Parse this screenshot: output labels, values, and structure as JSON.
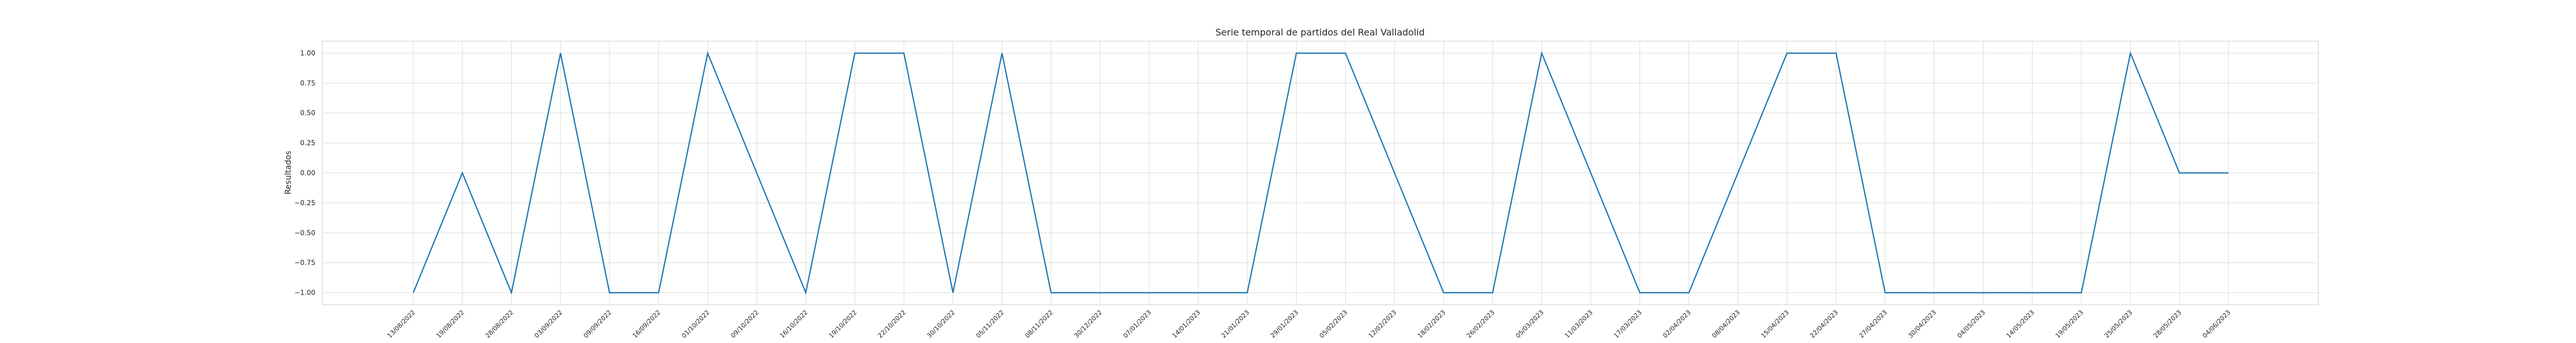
{
  "chart_data": {
    "type": "line",
    "title": "Serie temporal de partidos del Real Valladolid",
    "xlabel": "",
    "ylabel": "Resultados",
    "ylim": [
      -1.1,
      1.1
    ],
    "yticks": [
      -1.0,
      -0.75,
      -0.5,
      -0.25,
      0.0,
      0.25,
      0.5,
      0.75,
      1.0
    ],
    "ytick_labels": [
      "−1.00",
      "−0.75",
      "−0.50",
      "−0.25",
      "0.00",
      "0.25",
      "0.50",
      "0.75",
      "1.00"
    ],
    "grid": true,
    "line_color": "#1f77b4",
    "x": [
      "13/08/2022",
      "19/08/2022",
      "28/08/2022",
      "03/09/2022",
      "09/09/2022",
      "16/09/2022",
      "01/10/2022",
      "09/10/2022",
      "16/10/2022",
      "19/10/2022",
      "22/10/2022",
      "30/10/2022",
      "05/11/2022",
      "08/11/2022",
      "30/12/2022",
      "07/01/2023",
      "14/01/2023",
      "21/01/2023",
      "29/01/2023",
      "05/02/2023",
      "12/02/2023",
      "18/02/2023",
      "26/02/2023",
      "05/03/2023",
      "11/03/2023",
      "17/03/2023",
      "02/04/2023",
      "08/04/2023",
      "15/04/2023",
      "22/04/2023",
      "27/04/2023",
      "30/04/2023",
      "04/05/2023",
      "14/05/2023",
      "19/05/2023",
      "25/05/2023",
      "28/05/2023",
      "04/06/2023"
    ],
    "values": [
      -1,
      0,
      -1,
      1,
      -1,
      -1,
      1,
      0,
      -1,
      1,
      1,
      -1,
      1,
      -1,
      -1,
      -1,
      -1,
      -1,
      1,
      1,
      0,
      -1,
      -1,
      1,
      0,
      -1,
      -1,
      0,
      1,
      1,
      -1,
      -1,
      -1,
      -1,
      -1,
      1,
      0,
      0
    ]
  }
}
